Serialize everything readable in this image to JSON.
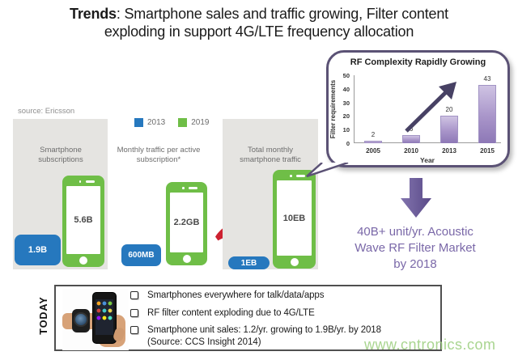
{
  "title": {
    "line1_bold": "Trends",
    "line1_rest": ": Smartphone sales and traffic growing, Filter content",
    "line2": "exploding in support 4G/LTE frequency allocation"
  },
  "source_label": "source: Ericsson",
  "legend": {
    "items": [
      {
        "label": "2013",
        "color": "#2678be"
      },
      {
        "label": "2019",
        "color": "#6fbe47"
      }
    ]
  },
  "panels": [
    {
      "label": "Smartphone subscriptions",
      "value_2019": "5.6B",
      "value_2013": "1.9B"
    },
    {
      "label": "Monthly traffic per active subscription*",
      "value_2019": "2.2GB",
      "value_2013": "600MB"
    },
    {
      "label": "Total monthly smartphone traffic",
      "value_2019": "10EB",
      "value_2013": "1EB"
    }
  ],
  "chart_data": {
    "type": "bar",
    "title": "RF Complexity Rapidly Growing",
    "categories": [
      "2005",
      "2010",
      "2013",
      "2015"
    ],
    "values": [
      2,
      6,
      20,
      43
    ],
    "xlabel": "Year",
    "ylabel": "Filter requirements",
    "ylim": [
      0,
      50
    ],
    "yticks": [
      0,
      10,
      20,
      30,
      40,
      50
    ],
    "grid": false,
    "legend_position": "none",
    "bar_color": "#a894c9",
    "annotation": "upward trend arrow from 2010 bar toward 2015 bar"
  },
  "market_callout": {
    "lines": [
      "40B+ unit/yr. Acoustic",
      "Wave RF Filter Market",
      "by 2018"
    ],
    "color": "#7a68a8"
  },
  "today": {
    "label": "TODAY",
    "bullets": [
      "Smartphones everywhere for talk/data/apps",
      "RF filter content exploding due to 4G/LTE",
      "Smartphone unit sales: 1.2/yr. growing to 1.9B/yr. by 2018"
    ],
    "source_note": "(Source: CCS Insight 2014)"
  },
  "watermark": "www.cntronics.com",
  "colors": {
    "blue_2013": "#2678be",
    "green_2019": "#6fbe47",
    "panel_gray": "#e5e4e1",
    "red_arrow": "#cd2130",
    "purple_arrow": "#6d5c9d",
    "purple_text": "#7a68a8",
    "callout_border": "#5b5275",
    "title_text": "#1b1b1b"
  },
  "icons": {
    "red_arrow": "right-block-arrow",
    "purple_arrow": "down-block-arrow",
    "trend_arrow": "up-right-arrow",
    "checkbox": "empty-square-checkbox"
  }
}
